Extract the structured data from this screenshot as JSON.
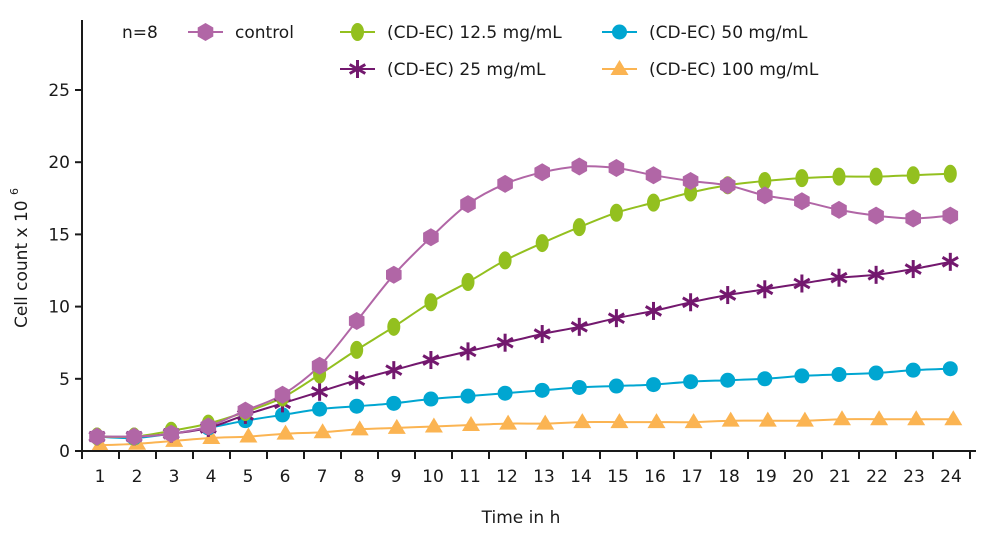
{
  "chart_data": {
    "type": "line",
    "title": "",
    "annotation": "n=8",
    "xlabel": "Time in h",
    "ylabel": "Cell count x 10",
    "ylabel_superscript": "6",
    "xlim": [
      1,
      24
    ],
    "ylim": [
      0,
      27
    ],
    "x_ticks": [
      1,
      2,
      3,
      4,
      5,
      6,
      7,
      8,
      9,
      10,
      11,
      12,
      13,
      14,
      15,
      16,
      17,
      18,
      19,
      20,
      21,
      22,
      23,
      24
    ],
    "y_ticks": [
      0,
      5,
      10,
      15,
      20,
      25
    ],
    "grid": false,
    "legend_position": "top",
    "x": [
      1,
      2,
      3,
      4,
      5,
      6,
      7,
      8,
      9,
      10,
      11,
      12,
      13,
      14,
      15,
      16,
      17,
      18,
      19,
      20,
      21,
      22,
      23,
      24
    ],
    "series": [
      {
        "name": "control",
        "color": "#b166a6",
        "marker": "hexagon",
        "values": [
          1.0,
          1.0,
          1.2,
          1.7,
          2.8,
          3.9,
          5.9,
          9.0,
          12.2,
          14.8,
          17.1,
          18.5,
          19.3,
          19.7,
          19.6,
          19.1,
          18.7,
          18.4,
          17.7,
          17.3,
          16.7,
          16.3,
          16.1,
          16.3
        ]
      },
      {
        "name": "(CD-EC) 12.5 mg/mL",
        "color": "#93c01f",
        "marker": "ellipse",
        "values": [
          1.0,
          1.0,
          1.4,
          1.9,
          2.7,
          3.7,
          5.3,
          7.0,
          8.6,
          10.3,
          11.7,
          13.2,
          14.4,
          15.5,
          16.5,
          17.2,
          17.9,
          18.4,
          18.7,
          18.9,
          19.0,
          19.0,
          19.1,
          19.2
        ]
      },
      {
        "name": "(CD-EC) 50 mg/mL",
        "color": "#00a6d1",
        "marker": "circle",
        "values": [
          1.0,
          0.9,
          1.2,
          1.6,
          2.1,
          2.5,
          2.9,
          3.1,
          3.3,
          3.6,
          3.8,
          4.0,
          4.2,
          4.4,
          4.5,
          4.6,
          4.8,
          4.9,
          5.0,
          5.2,
          5.3,
          5.4,
          5.6,
          5.7
        ]
      },
      {
        "name": "(CD-EC) 25 mg/mL",
        "color": "#73186e",
        "marker": "asterisk",
        "values": [
          1.0,
          1.0,
          1.2,
          1.6,
          2.5,
          3.3,
          4.1,
          4.9,
          5.6,
          6.3,
          6.9,
          7.5,
          8.1,
          8.6,
          9.2,
          9.7,
          10.3,
          10.8,
          11.2,
          11.6,
          12.0,
          12.2,
          12.6,
          13.1
        ]
      },
      {
        "name": "(CD-EC) 100 mg/mL",
        "color": "#fbb452",
        "marker": "triangle",
        "values": [
          0.4,
          0.5,
          0.7,
          0.9,
          1.0,
          1.2,
          1.3,
          1.5,
          1.6,
          1.7,
          1.8,
          1.9,
          1.9,
          2.0,
          2.0,
          2.0,
          2.0,
          2.1,
          2.1,
          2.1,
          2.2,
          2.2,
          2.2,
          2.2
        ]
      }
    ]
  }
}
